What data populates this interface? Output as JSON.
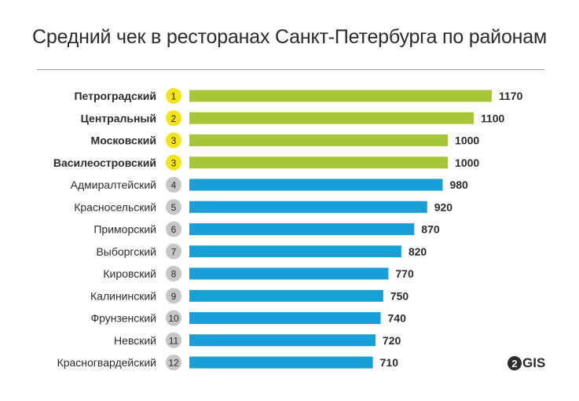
{
  "chart_data": {
    "type": "bar",
    "orientation": "horizontal",
    "title": "Средний чек в ресторанах Санкт-Петербурга по районам",
    "categories": [
      "Петроградский",
      "Центральный",
      "Московский",
      "Василеостровский",
      "Адмиралтейский",
      "Красносельский",
      "Приморский",
      "Выборгский",
      "Кировский",
      "Калининский",
      "Фрунзенский",
      "Невский",
      "Красногвардейский"
    ],
    "ranks": [
      "1",
      "2",
      "3",
      "3",
      "4",
      "5",
      "6",
      "7",
      "8",
      "9",
      "10",
      "11",
      "12"
    ],
    "values": [
      1170,
      1100,
      1000,
      1000,
      980,
      920,
      870,
      820,
      770,
      750,
      740,
      720,
      710
    ],
    "highlight": [
      true,
      true,
      true,
      true,
      false,
      false,
      false,
      false,
      false,
      false,
      false,
      false,
      false
    ],
    "grid": false,
    "legend": "none"
  },
  "colors": {
    "top_bar": "#a6c637",
    "bar": "#16a0d6",
    "top_badge": "#f3e31a",
    "badge": "#c6c6c6",
    "text": "#2b2b2b"
  },
  "logo": {
    "mark": "2",
    "text": "GIS"
  }
}
